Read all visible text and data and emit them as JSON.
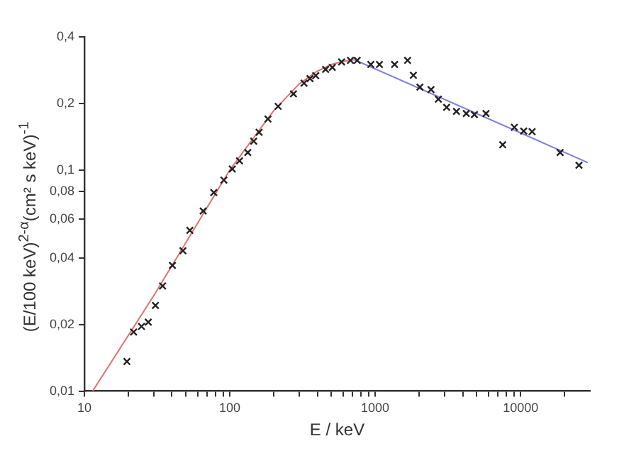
{
  "chart_data": {
    "type": "scatter",
    "xlabel": "E / keV",
    "ylabel": "(E/100 keV)$^{2-α}$(cm² s keV)$^{-1}$",
    "log": "xy",
    "grid": false,
    "legend": false,
    "marker": "cross",
    "xlim": [
      10,
      30000
    ],
    "ylim": [
      0.01,
      0.4
    ],
    "xticks": [
      10,
      {
        "value": 20,
        "label": null
      },
      {
        "value": 30,
        "label": null
      },
      {
        "value": 40,
        "label": null
      },
      {
        "value": 50,
        "label": null
      },
      {
        "value": 60,
        "label": null
      },
      {
        "value": 70,
        "label": null
      },
      {
        "value": 80,
        "label": null
      },
      {
        "value": 90,
        "label": null
      },
      100,
      {
        "value": 200,
        "label": null
      },
      {
        "value": 300,
        "label": null
      },
      {
        "value": 400,
        "label": null
      },
      {
        "value": 500,
        "label": null
      },
      {
        "value": 600,
        "label": null
      },
      {
        "value": 700,
        "label": null
      },
      {
        "value": 800,
        "label": null
      },
      {
        "value": 900,
        "label": null
      },
      1000,
      {
        "value": 2000,
        "label": null
      },
      {
        "value": 3000,
        "label": null
      },
      {
        "value": 4000,
        "label": null
      },
      {
        "value": 5000,
        "label": null
      },
      {
        "value": 6000,
        "label": null
      },
      {
        "value": 7000,
        "label": null
      },
      {
        "value": 8000,
        "label": null
      },
      {
        "value": 9000,
        "label": null
      },
      10000,
      {
        "value": 20000,
        "label": null
      }
    ],
    "yticks": [
      {
        "value": 0.01,
        "label": "0,01"
      },
      {
        "value": 0.02,
        "label": "0,02"
      },
      {
        "value": 0.04,
        "label": "0,04"
      },
      {
        "value": 0.06,
        "label": "0,06"
      },
      {
        "value": 0.08,
        "label": "0,08"
      },
      {
        "value": 0.1,
        "label": "0,1"
      },
      {
        "value": 0.2,
        "label": "0,2"
      },
      {
        "value": 0.4,
        "label": "0,4"
      }
    ],
    "series": [
      {
        "type": "scatter",
        "color": "#222222",
        "x": [
          19.6,
          21.8,
          24.7,
          27.5,
          30.8,
          34.5,
          40.3,
          47.6,
          53.1,
          65.6,
          77.6,
          91,
          104,
          116.6,
          133,
          146,
          159,
          183,
          215,
          274,
          324,
          356,
          390,
          456,
          507,
          587,
          676,
          752,
          933,
          1070,
          1360,
          1670,
          1830,
          2030,
          2420,
          2720,
          3100,
          3620,
          4230,
          4810,
          5780,
          7530,
          9060,
          10500,
          12000,
          18700,
          25200
        ],
        "values": [
          0.0136,
          0.0185,
          0.0196,
          0.0205,
          0.0244,
          0.0299,
          0.037,
          0.0431,
          0.0533,
          0.0652,
          0.079,
          0.09,
          0.101,
          0.11,
          0.12,
          0.135,
          0.148,
          0.17,
          0.194,
          0.221,
          0.247,
          0.259,
          0.267,
          0.285,
          0.291,
          0.308,
          0.313,
          0.313,
          0.3,
          0.3,
          0.3,
          0.313,
          0.268,
          0.237,
          0.231,
          0.209,
          0.192,
          0.184,
          0.18,
          0.178,
          0.18,
          0.13,
          0.156,
          0.15,
          0.149,
          0.12,
          0.105
        ]
      },
      {
        "type": "line",
        "color": "#e07070",
        "marker": "none",
        "x": [
          11.4,
          30,
          100,
          200,
          300,
          400,
          500,
          600,
          720
        ],
        "values": [
          0.01,
          0.027,
          0.1,
          0.185,
          0.245,
          0.28,
          0.3,
          0.31,
          0.315
        ]
      },
      {
        "type": "line",
        "color": "#7f7fe0",
        "marker": "none",
        "x": [
          720,
          29000
        ],
        "values": [
          0.315,
          0.108
        ]
      }
    ]
  }
}
